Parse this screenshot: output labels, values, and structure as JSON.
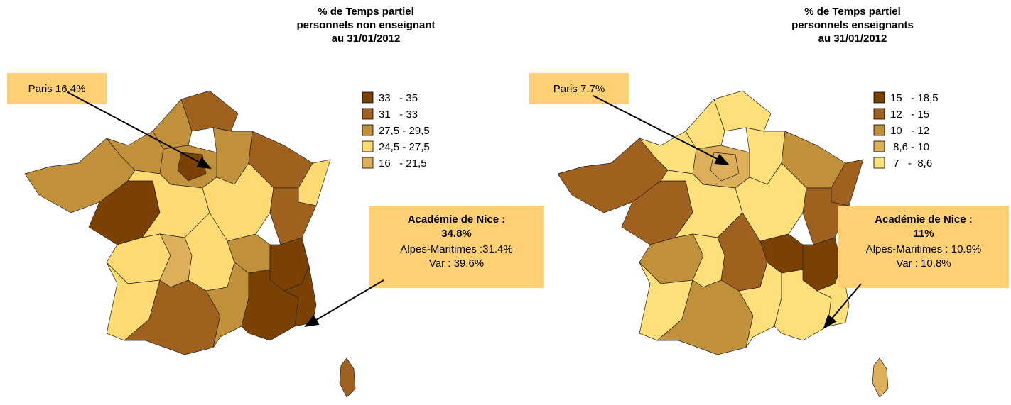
{
  "maps": [
    {
      "title": [
        "% de Temps partiel",
        "personnels non enseignant",
        "au 31/01/2012"
      ],
      "legend": [
        {
          "label": "33   - 35",
          "color": "#7b4104"
        },
        {
          "label": "31   - 33",
          "color": "#a0611f"
        },
        {
          "label": "27,5 - 29,5",
          "color": "#c0913a"
        },
        {
          "label": "24,5 - 27,5",
          "color": "#fdda72"
        },
        {
          "label": "16   - 21,5",
          "color": "#deaf5a"
        }
      ],
      "paris": "Paris 16.4%",
      "callout": {
        "title": "Académie de Nice :",
        "value": "34.8%",
        "lines": [
          "Alpes-Maritimes :31.4%",
          "Var : 39.6%"
        ]
      }
    },
    {
      "title": [
        "% de Temps partiel",
        "personnels enseignants",
        "au 31/01/2012"
      ],
      "legend": [
        {
          "label": "15   - 18,5",
          "color": "#7b4104"
        },
        {
          "label": "12   - 15",
          "color": "#a0611f"
        },
        {
          "label": "10   - 12",
          "color": "#c0913a"
        },
        {
          "label": " 8,6 - 10",
          "color": "#deaf5a"
        },
        {
          "label": " 7   -  8,6",
          "color": "#fde07a"
        }
      ],
      "paris": "Paris 7.7%",
      "callout": {
        "title": "Académie de Nice :",
        "value": "11%",
        "lines": [
          "Alpes-Maritimes : 10.9%",
          "Var : 10.8%"
        ]
      }
    }
  ]
}
